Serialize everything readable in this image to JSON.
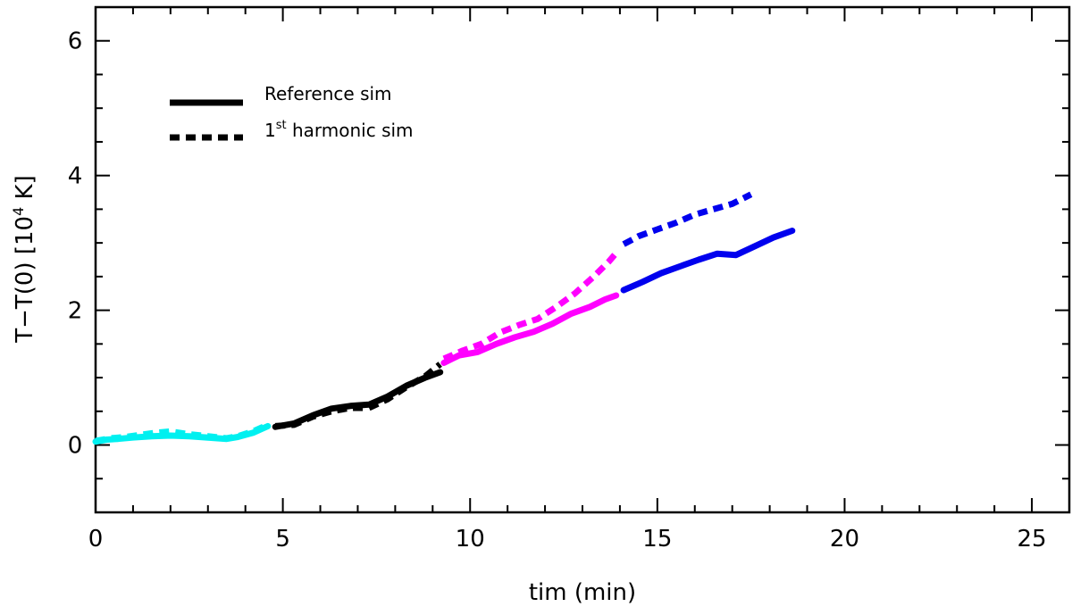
{
  "chart_data": {
    "type": "line",
    "title": "",
    "xlabel": "tim (min)",
    "ylabel_main": "T−T(0)",
    "ylabel_unit_prefix": "[10",
    "ylabel_unit_exp": "4",
    "ylabel_unit_suffix": " K]",
    "xlim": [
      0,
      26
    ],
    "ylim": [
      -1,
      6.5
    ],
    "xticks": [
      0,
      5,
      10,
      15,
      20,
      25
    ],
    "xtick_labels": [
      "0",
      "5",
      "10",
      "15",
      "20",
      "25"
    ],
    "yticks": [
      0,
      2,
      4,
      6
    ],
    "ytick_labels": [
      "0",
      "2",
      "4",
      "6"
    ],
    "x_minor_step": 1,
    "y_minor_step": 0.5,
    "legend": {
      "position": "top-left",
      "entries": [
        {
          "style": "solid",
          "label": "Reference sim",
          "label_pre": "Reference sim",
          "label_sup": "",
          "label_post": ""
        },
        {
          "style": "dashed",
          "label": "1st harmonic sim",
          "label_pre": "1",
          "label_sup": "st",
          "label_post": " harmonic sim"
        }
      ]
    },
    "series": [
      {
        "name": "Reference sim 0-4.5 min",
        "style": "solid",
        "color": "#00f0f0",
        "x": [
          0,
          0.3,
          0.6,
          1,
          1.5,
          2,
          2.5,
          3,
          3.5,
          3.8,
          4.2,
          4.6
        ],
        "y": [
          0.05,
          0.08,
          0.09,
          0.11,
          0.13,
          0.14,
          0.13,
          0.11,
          0.09,
          0.12,
          0.18,
          0.28
        ]
      },
      {
        "name": "1st harmonic sim 0-4.5 min",
        "style": "dashed",
        "color": "#00f0f0",
        "x": [
          0,
          0.4,
          0.8,
          1.2,
          1.6,
          2,
          2.5,
          3,
          3.5,
          3.8,
          4.2,
          4.6
        ],
        "y": [
          0.06,
          0.1,
          0.12,
          0.15,
          0.18,
          0.2,
          0.16,
          0.13,
          0.1,
          0.13,
          0.2,
          0.3
        ]
      },
      {
        "name": "Reference sim 4.8-9.2 min",
        "style": "solid",
        "color": "#000000",
        "x": [
          4.8,
          5.3,
          5.8,
          6.3,
          6.8,
          7.3,
          7.8,
          8.3,
          8.8,
          9.2
        ],
        "y": [
          0.27,
          0.32,
          0.44,
          0.54,
          0.58,
          0.6,
          0.72,
          0.88,
          1.0,
          1.08
        ]
      },
      {
        "name": "1st harmonic sim 4.8-9.2 min",
        "style": "dashed",
        "color": "#000000",
        "x": [
          4.8,
          5.3,
          5.8,
          6.3,
          6.8,
          7.3,
          7.8,
          8.3,
          8.8,
          9.2
        ],
        "y": [
          0.28,
          0.3,
          0.42,
          0.5,
          0.55,
          0.55,
          0.68,
          0.86,
          1.02,
          1.2
        ]
      },
      {
        "name": "Reference sim 9.3-13.9 min",
        "style": "solid",
        "color": "#ff00ff",
        "x": [
          9.3,
          9.7,
          10.2,
          10.7,
          11.2,
          11.7,
          12.2,
          12.7,
          13.2,
          13.6,
          13.9
        ],
        "y": [
          1.22,
          1.33,
          1.38,
          1.5,
          1.6,
          1.68,
          1.8,
          1.95,
          2.05,
          2.16,
          2.22
        ]
      },
      {
        "name": "1st harmonic sim 9.3-13.9 min",
        "style": "dashed",
        "color": "#ff00ff",
        "x": [
          9.3,
          9.8,
          10.3,
          10.8,
          11.3,
          11.8,
          12.3,
          12.8,
          13.3,
          13.7,
          13.9
        ],
        "y": [
          1.28,
          1.4,
          1.5,
          1.67,
          1.78,
          1.87,
          2.05,
          2.25,
          2.5,
          2.72,
          2.85
        ]
      },
      {
        "name": "Reference sim 14-18.6 min",
        "style": "solid",
        "color": "#0000ee",
        "x": [
          14.1,
          14.6,
          15.1,
          15.6,
          16.1,
          16.6,
          17.1,
          17.6,
          18.1,
          18.6
        ],
        "y": [
          2.3,
          2.42,
          2.55,
          2.65,
          2.75,
          2.84,
          2.82,
          2.95,
          3.08,
          3.18
        ]
      },
      {
        "name": "1st harmonic sim 14-17.5 min",
        "style": "dashed",
        "color": "#0000ee",
        "x": [
          14.1,
          14.5,
          15.0,
          15.5,
          16.0,
          16.5,
          17.0,
          17.5
        ],
        "y": [
          2.98,
          3.1,
          3.2,
          3.3,
          3.42,
          3.5,
          3.58,
          3.72
        ]
      }
    ]
  }
}
